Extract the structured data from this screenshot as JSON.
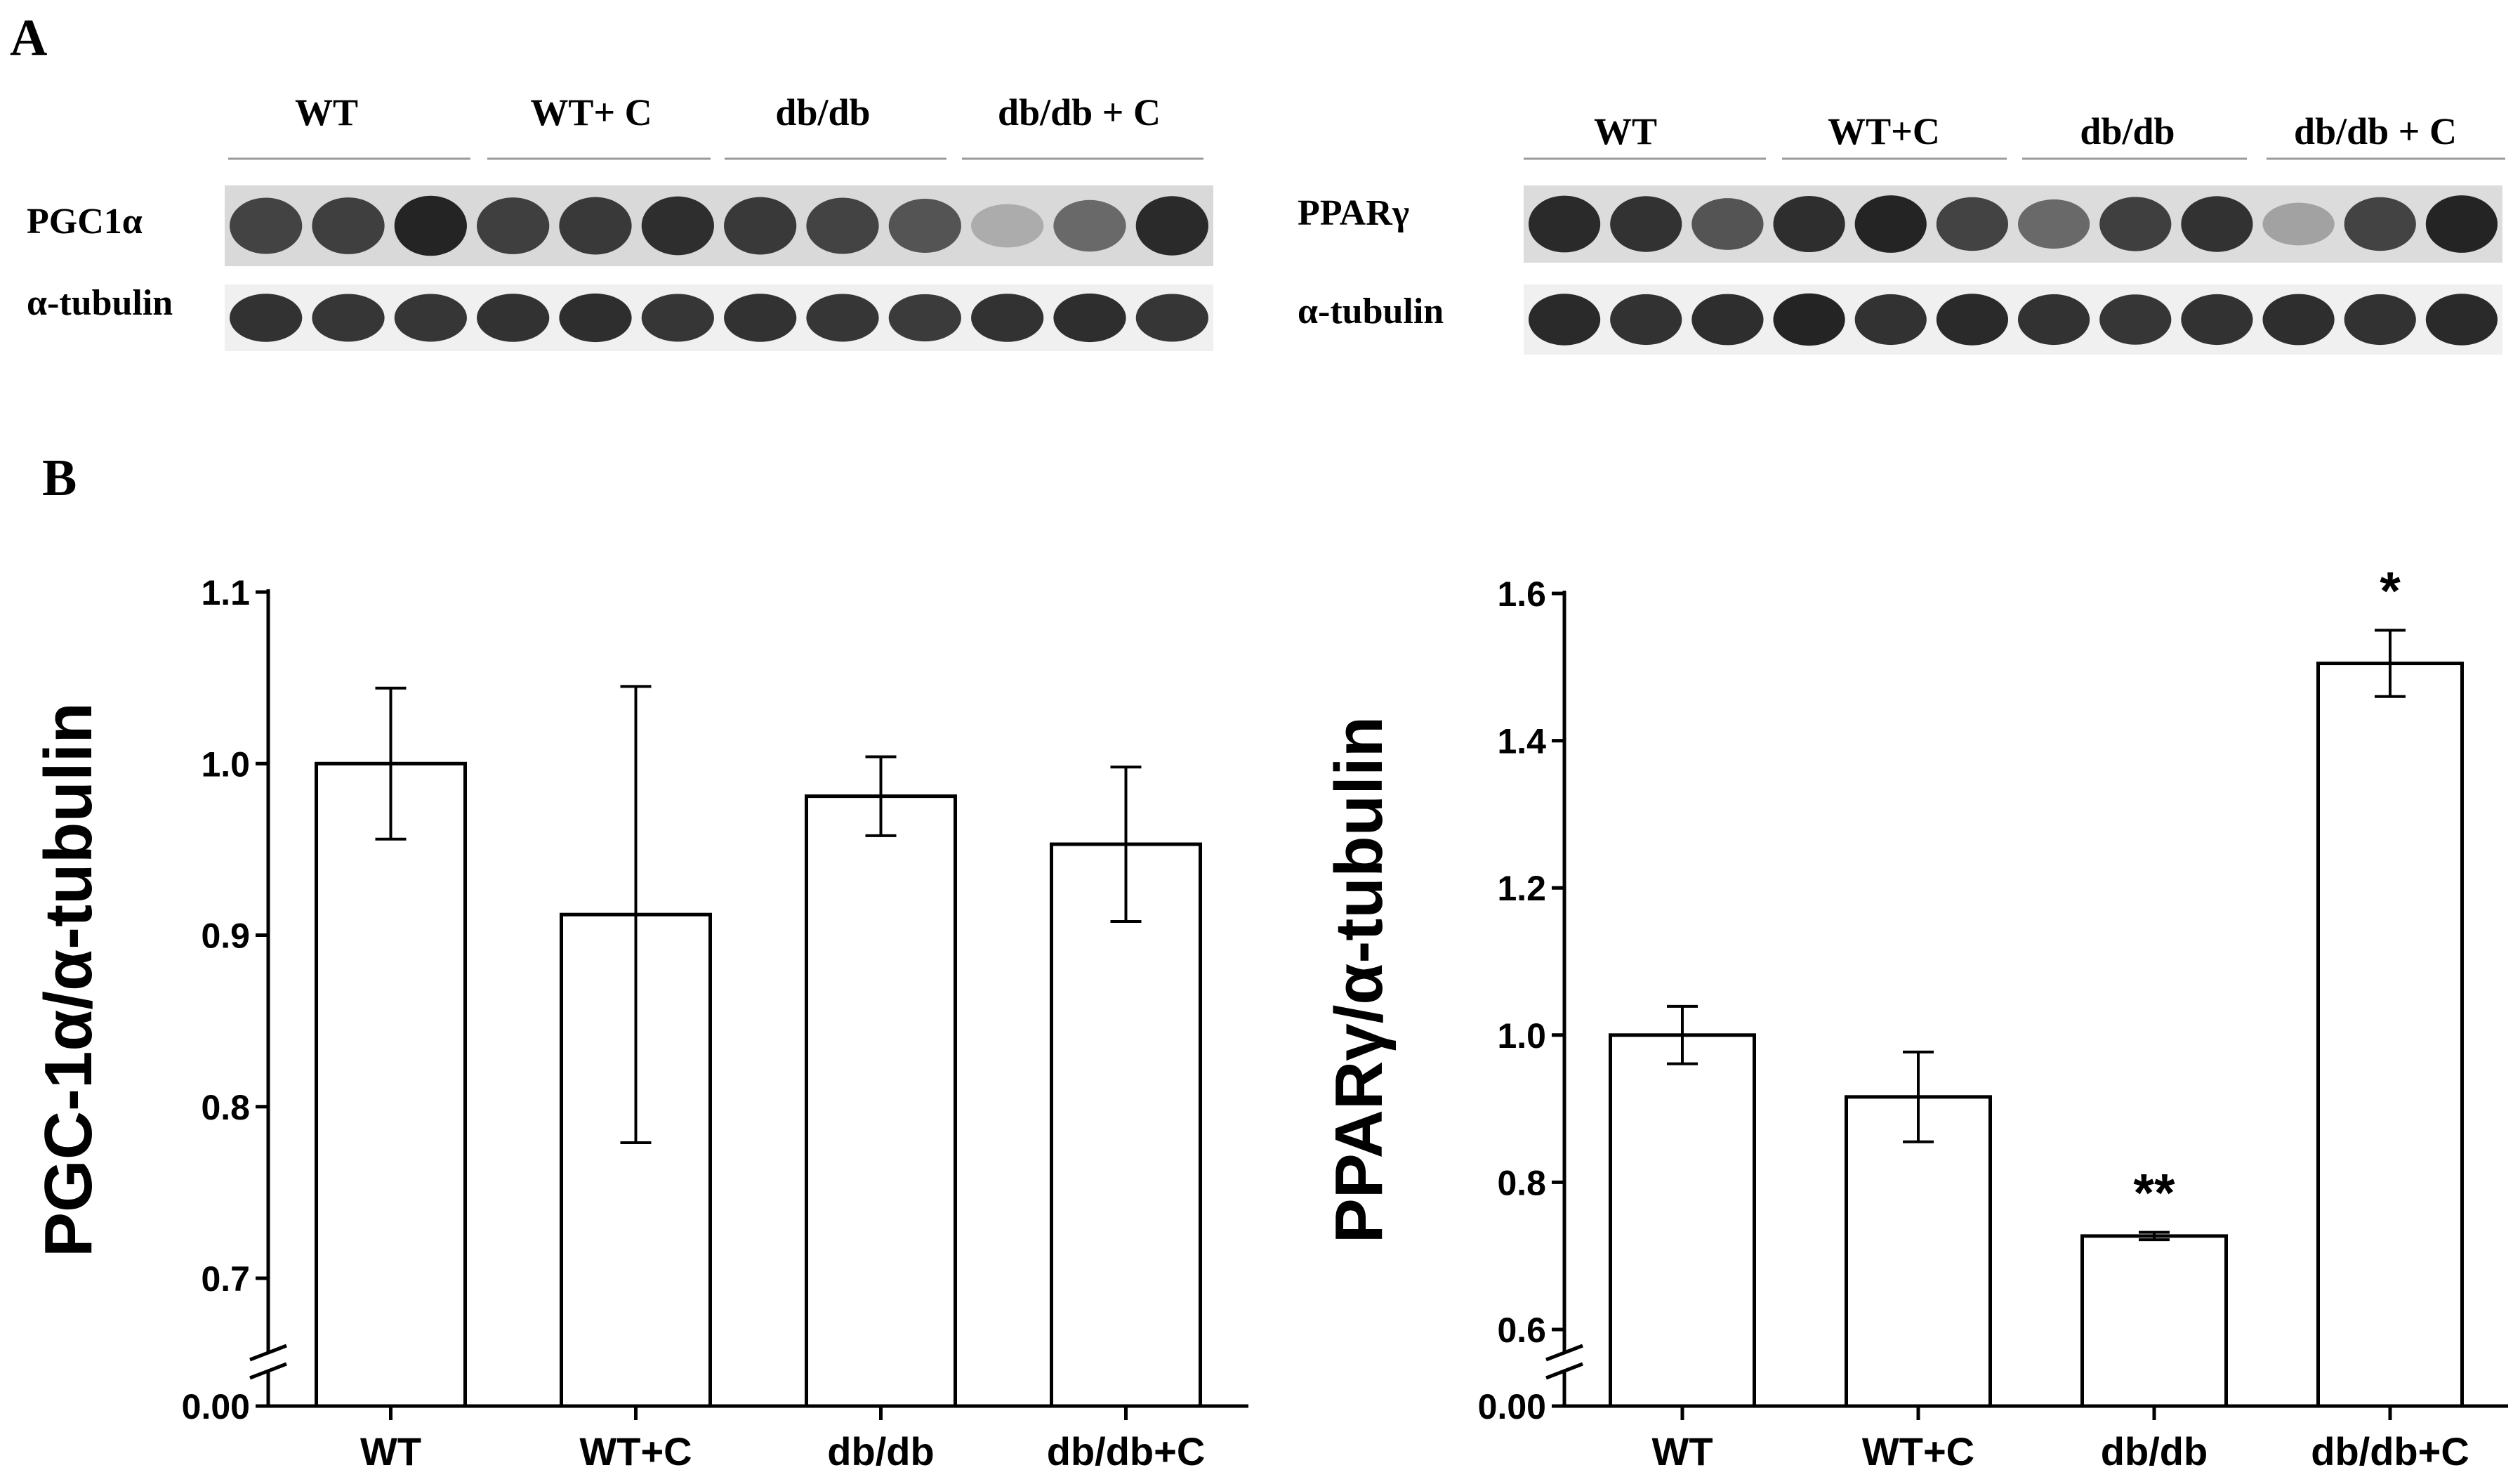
{
  "panel_a": {
    "label": "A",
    "left_blot": {
      "groups": [
        "WT",
        "WT+ C",
        "db/db",
        "db/db + C"
      ],
      "rows": [
        "PGC1α",
        "α-tubulin"
      ],
      "band_intensity": [
        [
          0.8,
          0.82,
          0.95,
          0.82,
          0.85,
          0.9,
          0.85,
          0.8,
          0.72,
          0.3,
          0.62,
          0.92
        ],
        [
          0.88,
          0.86,
          0.86,
          0.88,
          0.9,
          0.86,
          0.88,
          0.86,
          0.84,
          0.88,
          0.9,
          0.86
        ]
      ]
    },
    "right_blot": {
      "groups": [
        "WT",
        "WT+C",
        "db/db",
        "db/db + C"
      ],
      "rows": [
        "PPARγ",
        "α-tubulin"
      ],
      "band_intensity": [
        [
          0.92,
          0.88,
          0.72,
          0.9,
          0.95,
          0.8,
          0.62,
          0.82,
          0.88,
          0.35,
          0.8,
          0.95
        ],
        [
          0.92,
          0.88,
          0.9,
          0.95,
          0.88,
          0.92,
          0.88,
          0.86,
          0.88,
          0.9,
          0.88,
          0.92
        ]
      ]
    }
  },
  "panel_b": {
    "label": "B"
  },
  "chart_data": [
    {
      "type": "bar",
      "categories": [
        "WT",
        "WT+C",
        "db/db",
        "db/db+C"
      ],
      "values": [
        1.0,
        0.912,
        0.981,
        0.953
      ],
      "error": [
        0.044,
        0.133,
        0.023,
        0.045
      ],
      "significance": [
        "",
        "",
        "",
        ""
      ],
      "ylabel": "PGC-1α/α-tubulin",
      "xlabel": "",
      "ylim": [
        0.65,
        1.1
      ],
      "yticks": [
        "1.1",
        "1.0",
        "0.9",
        "0.8",
        "0.7",
        "0.00"
      ],
      "axis_break": true,
      "grid": false,
      "bar_fill": "#ffffff",
      "bar_edge": "#000000"
    },
    {
      "type": "bar",
      "categories": [
        "WT",
        "WT+C",
        "db/db",
        "db/db+C"
      ],
      "values": [
        1.0,
        0.916,
        0.727,
        1.505
      ],
      "error": [
        0.039,
        0.061,
        0.005,
        0.045
      ],
      "significance": [
        "",
        "",
        "**",
        "*"
      ],
      "ylabel": "PPARγ/α-tubulin",
      "xlabel": "",
      "ylim": [
        0.56,
        1.6
      ],
      "yticks": [
        "1.6",
        "1.4",
        "1.2",
        "1.0",
        "0.8",
        "0.6",
        "0.00"
      ],
      "axis_break": true,
      "grid": false,
      "bar_fill": "#ffffff",
      "bar_edge": "#000000"
    }
  ]
}
